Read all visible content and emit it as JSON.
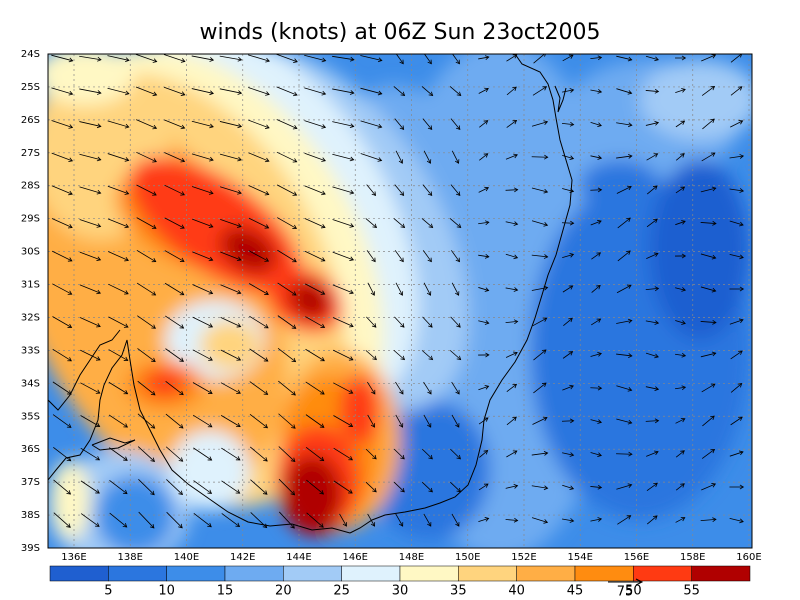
{
  "title": "winds (knots) at 06Z Sun 23oct2005",
  "lat_labels": [
    "24S",
    "25S",
    "26S",
    "27S",
    "28S",
    "29S",
    "30S",
    "31S",
    "32S",
    "33S",
    "34S",
    "35S",
    "36S",
    "37S",
    "38S",
    "39S"
  ],
  "lon_labels": [
    "136E",
    "138E",
    "140E",
    "142E",
    "144E",
    "146E",
    "148E",
    "150E",
    "152E",
    "154E",
    "156E",
    "158E",
    "160E"
  ],
  "colorbar": {
    "colors": [
      "#1f5fd0",
      "#2b76df",
      "#3d8de9",
      "#6eabf1",
      "#a2cbf6",
      "#dff2fd",
      "#fff8c4",
      "#ffd47e",
      "#ffae45",
      "#ff8c10",
      "#ff3a12",
      "#b00000"
    ],
    "labels": [
      "5",
      "10",
      "15",
      "20",
      "25",
      "30",
      "35",
      "40",
      "45",
      "50",
      "55"
    ]
  },
  "reference_vector_label": "75"
}
